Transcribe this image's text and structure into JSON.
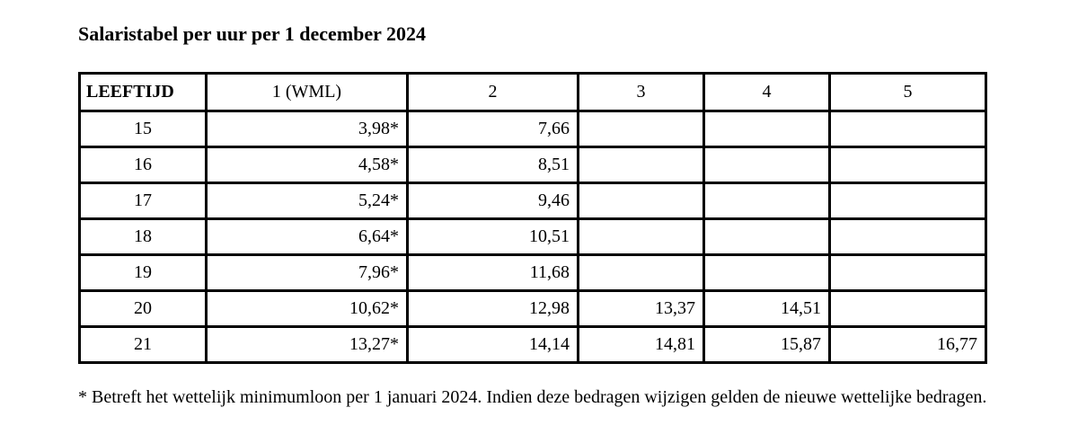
{
  "page": {
    "title": "Salaristabel per uur per 1 december 2024",
    "footnote": "* Betreft het wettelijk minimumloon per 1 januari 2024. Indien deze bedragen wijzigen gelden de nieuwe wettelijke bedragen."
  },
  "table": {
    "columns": [
      "LEEFTIJD",
      "1 (WML)",
      "2",
      "3",
      "4",
      "5"
    ],
    "rows": [
      [
        "15",
        "3,98*",
        "7,66",
        "",
        "",
        ""
      ],
      [
        "16",
        "4,58*",
        "8,51",
        "",
        "",
        ""
      ],
      [
        "17",
        "5,24*",
        "9,46",
        "",
        "",
        ""
      ],
      [
        "18",
        "6,64*",
        "10,51",
        "",
        "",
        ""
      ],
      [
        "19",
        "7,96*",
        "11,68",
        "",
        "",
        ""
      ],
      [
        "20",
        "10,62*",
        "12,98",
        "13,37",
        "14,51",
        ""
      ],
      [
        "21",
        "13,27*",
        "14,14",
        "14,81",
        "15,87",
        "16,77"
      ]
    ]
  },
  "colors": {
    "text": "#000000",
    "border": "#000000",
    "background": "#ffffff"
  }
}
